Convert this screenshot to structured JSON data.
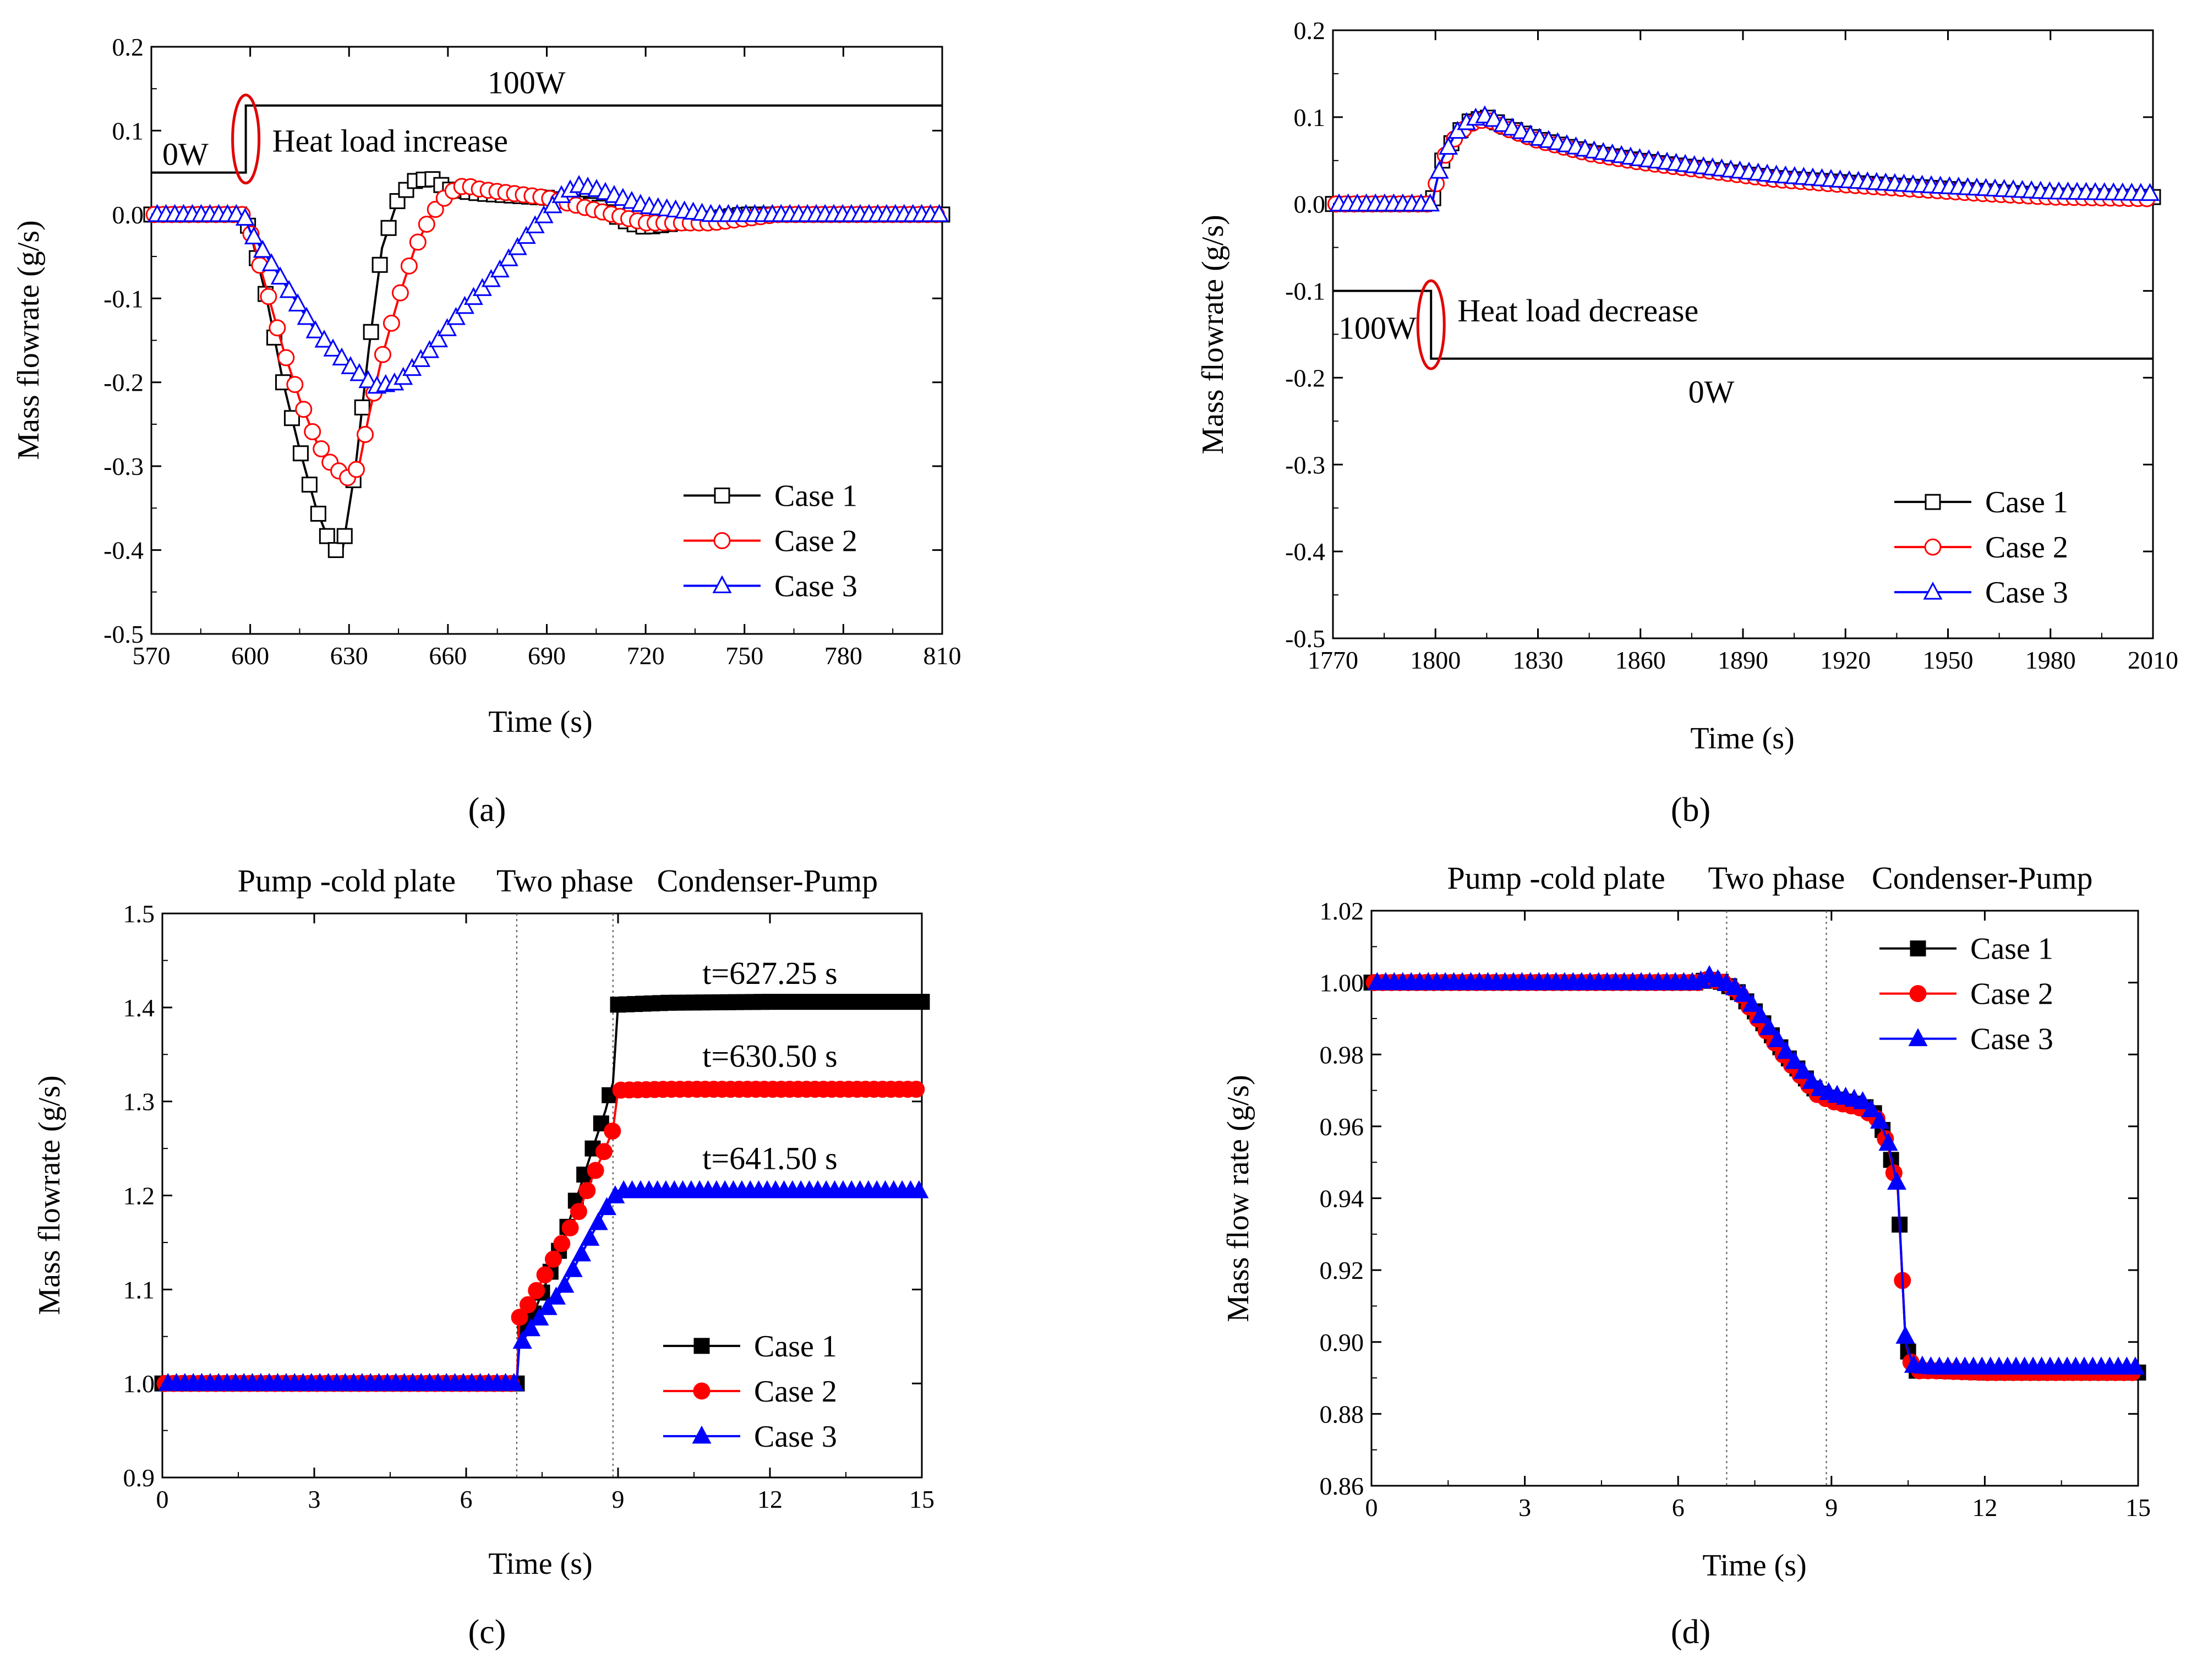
{
  "figure": {
    "panels": [
      "(a)",
      "(b)",
      "(c)",
      "(d)"
    ]
  },
  "chart_data": [
    {
      "id": "a",
      "type": "line",
      "panel_label": "(a)",
      "xlabel": "Time (s)",
      "ylabel": "Mass flowrate (g/s)",
      "xlim": [
        570,
        810
      ],
      "ylim": [
        -0.5,
        0.2
      ],
      "xticks": [
        570,
        600,
        630,
        660,
        690,
        720,
        750,
        780,
        810
      ],
      "yticks": [
        -0.5,
        -0.4,
        -0.3,
        -0.2,
        -0.1,
        0.0,
        0.1,
        0.2
      ],
      "xtick_labels": [
        "570",
        "600",
        "630",
        "660",
        "690",
        "720",
        "750",
        "780",
        "810"
      ],
      "ytick_labels": [
        "-0.5",
        "-0.4",
        "-0.3",
        "-0.2",
        "-0.1",
        "0.0",
        "0.1",
        "0.2"
      ],
      "legend": [
        "Case 1",
        "Case 2",
        "Case 3"
      ],
      "legend_position": "bottom-right",
      "series": [
        {
          "name": "Case 1",
          "color": "#000000",
          "marker": "open-square",
          "x": [
            570,
            598,
            600,
            605,
            610,
            615,
            620,
            625,
            628,
            632,
            636,
            640,
            645,
            650,
            655,
            660,
            670,
            690,
            705,
            715,
            720,
            730,
            750,
            810
          ],
          "y": [
            0.0,
            0.0,
            -0.02,
            -0.1,
            -0.2,
            -0.28,
            -0.35,
            -0.4,
            -0.4,
            -0.3,
            -0.16,
            -0.04,
            0.02,
            0.04,
            0.043,
            0.03,
            0.025,
            0.02,
            0.01,
            -0.01,
            -0.015,
            -0.01,
            0.0,
            0.0
          ]
        },
        {
          "name": "Case 2",
          "color": "#ff0000",
          "marker": "open-circle",
          "x": [
            570,
            598,
            600,
            605,
            610,
            615,
            620,
            625,
            630,
            633,
            636,
            640,
            645,
            650,
            655,
            660,
            665,
            670,
            690,
            710,
            720,
            740,
            760,
            810
          ],
          "y": [
            0.0,
            0.0,
            -0.02,
            -0.09,
            -0.16,
            -0.22,
            -0.27,
            -0.3,
            -0.315,
            -0.3,
            -0.24,
            -0.17,
            -0.1,
            -0.04,
            0.0,
            0.025,
            0.035,
            0.03,
            0.02,
            0.0,
            -0.01,
            -0.01,
            0.0,
            0.0
          ]
        },
        {
          "name": "Case 3",
          "color": "#0000ff",
          "marker": "open-triangle",
          "x": [
            570,
            598,
            600,
            610,
            620,
            630,
            638,
            645,
            655,
            665,
            675,
            685,
            695,
            700,
            705,
            720,
            740,
            760,
            810
          ],
          "y": [
            0.0,
            0.0,
            -0.02,
            -0.08,
            -0.14,
            -0.18,
            -0.205,
            -0.2,
            -0.16,
            -0.11,
            -0.07,
            -0.02,
            0.025,
            0.035,
            0.03,
            0.01,
            0.0,
            0.0,
            0.0
          ]
        }
      ],
      "annotations": {
        "low_label": "0W",
        "high_label": "100W",
        "event_label": "Heat load increase",
        "step_low_y": 0.05,
        "step_high_y": 0.13,
        "step_time": 600
      }
    },
    {
      "id": "b",
      "type": "line",
      "panel_label": "(b)",
      "xlabel": "Time (s)",
      "ylabel": "Mass flowrate (g/s)",
      "xlim": [
        1770,
        2010
      ],
      "ylim": [
        -0.5,
        0.2
      ],
      "xticks": [
        1770,
        1800,
        1830,
        1860,
        1890,
        1920,
        1950,
        1980,
        2010
      ],
      "yticks": [
        -0.5,
        -0.4,
        -0.3,
        -0.2,
        -0.1,
        0.0,
        0.1,
        0.2
      ],
      "xtick_labels": [
        "1770",
        "1800",
        "1830",
        "1860",
        "1890",
        "1920",
        "1950",
        "1980",
        "2010"
      ],
      "ytick_labels": [
        "-0.5",
        "-0.4",
        "-0.3",
        "-0.2",
        "-0.1",
        "0.0",
        "0.1",
        "0.2"
      ],
      "legend": [
        "Case 1",
        "Case 2",
        "Case 3"
      ],
      "legend_position": "bottom-right",
      "series": [
        {
          "name": "Case 1",
          "color": "#000000",
          "marker": "open-square",
          "x": [
            1770,
            1799,
            1800,
            1802,
            1806,
            1810,
            1815,
            1820,
            1830,
            1845,
            1860,
            1880,
            1900,
            1920,
            1940,
            1960,
            1980,
            2010
          ],
          "y": [
            0.0,
            0.0,
            0.02,
            0.05,
            0.08,
            0.095,
            0.1,
            0.09,
            0.075,
            0.06,
            0.05,
            0.04,
            0.03,
            0.025,
            0.02,
            0.015,
            0.01,
            0.008
          ]
        },
        {
          "name": "Case 2",
          "color": "#ff0000",
          "marker": "open-circle",
          "x": [
            1770,
            1799,
            1800,
            1802,
            1806,
            1810,
            1815,
            1820,
            1830,
            1845,
            1860,
            1880,
            1900,
            1920,
            1940,
            1960,
            1980,
            2010
          ],
          "y": [
            0.0,
            0.0,
            0.02,
            0.05,
            0.078,
            0.092,
            0.098,
            0.088,
            0.073,
            0.058,
            0.048,
            0.038,
            0.028,
            0.022,
            0.017,
            0.012,
            0.008,
            0.006
          ]
        },
        {
          "name": "Case 3",
          "color": "#0000ff",
          "marker": "open-triangle",
          "x": [
            1770,
            1799,
            1800,
            1802,
            1806,
            1810,
            1815,
            1820,
            1830,
            1845,
            1860,
            1880,
            1900,
            1920,
            1940,
            1960,
            1980,
            2010
          ],
          "y": [
            0.0,
            0.0,
            0.02,
            0.052,
            0.082,
            0.097,
            0.102,
            0.091,
            0.076,
            0.062,
            0.052,
            0.042,
            0.033,
            0.027,
            0.022,
            0.018,
            0.014,
            0.012
          ]
        }
      ],
      "annotations": {
        "low_label": "0W",
        "high_label": "100W",
        "event_label": "Heat load decrease",
        "step_high_y": -0.1,
        "step_low_y": -0.178,
        "step_time": 1800
      }
    },
    {
      "id": "c",
      "type": "line",
      "panel_label": "(c)",
      "xlabel": "Time (s)",
      "ylabel": "Mass flowrate (g/s)",
      "xlim": [
        0,
        15
      ],
      "ylim": [
        0.9,
        1.5
      ],
      "xticks": [
        0,
        3,
        6,
        9,
        12,
        15
      ],
      "yticks": [
        0.9,
        1.0,
        1.1,
        1.2,
        1.3,
        1.4,
        1.5
      ],
      "xtick_labels": [
        "0",
        "3",
        "6",
        "9",
        "12",
        "15"
      ],
      "ytick_labels": [
        "0.9",
        "1.0",
        "1.1",
        "1.2",
        "1.3",
        "1.4",
        "1.5"
      ],
      "legend": [
        "Case 1",
        "Case 2",
        "Case 3"
      ],
      "legend_position": "bottom-right",
      "regions": [
        "Pump -cold plate",
        "Two phase",
        "Condenser-Pump"
      ],
      "region_boundaries": [
        7.0,
        8.9
      ],
      "time_labels": [
        {
          "text": "t=627.25 s",
          "y": 1.425
        },
        {
          "text": "t=630.50 s",
          "y": 1.337
        },
        {
          "text": "t=641.50 s",
          "y": 1.228
        }
      ],
      "series": [
        {
          "name": "Case 1",
          "color": "#000000",
          "marker": "filled-square",
          "x": [
            0,
            7.0,
            7.05,
            7.3,
            7.6,
            7.9,
            8.2,
            8.5,
            8.75,
            8.9,
            9.0,
            10,
            12,
            15
          ],
          "y": [
            1.0,
            1.0,
            1.05,
            1.07,
            1.11,
            1.15,
            1.2,
            1.25,
            1.29,
            1.32,
            1.403,
            1.405,
            1.406,
            1.406
          ]
        },
        {
          "name": "Case 2",
          "color": "#ff0000",
          "marker": "filled-circle",
          "x": [
            0,
            7.0,
            7.05,
            7.3,
            7.6,
            7.9,
            8.2,
            8.5,
            8.75,
            8.9,
            9.0,
            10,
            12,
            15
          ],
          "y": [
            1.0,
            1.0,
            1.07,
            1.09,
            1.12,
            1.15,
            1.18,
            1.22,
            1.25,
            1.27,
            1.312,
            1.313,
            1.313,
            1.313
          ]
        },
        {
          "name": "Case 3",
          "color": "#0000ff",
          "marker": "filled-triangle",
          "x": [
            0,
            7.0,
            7.05,
            7.3,
            7.6,
            7.9,
            8.2,
            8.5,
            8.75,
            8.95,
            9.0,
            10,
            12,
            15
          ],
          "y": [
            1.0,
            1.0,
            1.04,
            1.06,
            1.08,
            1.1,
            1.13,
            1.16,
            1.185,
            1.2,
            1.205,
            1.205,
            1.205,
            1.205
          ]
        }
      ]
    },
    {
      "id": "d",
      "type": "line",
      "panel_label": "(d)",
      "xlabel": "Time (s)",
      "ylabel": "Mass flow rate (g/s)",
      "xlim": [
        0,
        15
      ],
      "ylim": [
        0.86,
        1.02
      ],
      "xticks": [
        0,
        3,
        6,
        9,
        12,
        15
      ],
      "yticks": [
        0.86,
        0.88,
        0.9,
        0.92,
        0.94,
        0.96,
        0.98,
        1.0,
        1.02
      ],
      "xtick_labels": [
        "0",
        "3",
        "6",
        "9",
        "12",
        "15"
      ],
      "ytick_labels": [
        "0.86",
        "0.88",
        "0.90",
        "0.92",
        "0.94",
        "0.96",
        "0.98",
        "1.00",
        "1.02"
      ],
      "legend": [
        "Case 1",
        "Case 2",
        "Case 3"
      ],
      "legend_position": "top-right",
      "regions": [
        "Pump -cold plate",
        "Two phase",
        "Condenser-Pump"
      ],
      "region_boundaries": [
        6.95,
        8.9
      ],
      "series": [
        {
          "name": "Case 1",
          "color": "#000000",
          "marker": "filled-square",
          "x": [
            0,
            6.4,
            6.6,
            6.9,
            7.2,
            7.5,
            7.8,
            8.1,
            8.4,
            8.7,
            9.0,
            9.3,
            9.6,
            9.9,
            10.1,
            10.3,
            10.45,
            10.6,
            11,
            12,
            13,
            15
          ],
          "y": [
            1.0,
            1.0,
            1.001,
            1.0,
            0.997,
            0.992,
            0.986,
            0.98,
            0.975,
            0.97,
            0.968,
            0.967,
            0.966,
            0.963,
            0.955,
            0.942,
            0.9,
            0.892,
            0.892,
            0.8915,
            0.8915,
            0.8915
          ]
        },
        {
          "name": "Case 2",
          "color": "#ff0000",
          "marker": "filled-circle",
          "x": [
            0,
            6.4,
            6.6,
            6.9,
            7.2,
            7.5,
            7.8,
            8.1,
            8.4,
            8.7,
            9.0,
            9.3,
            9.6,
            9.9,
            10.1,
            10.3,
            10.45,
            10.6,
            11,
            12,
            13,
            15
          ],
          "y": [
            1.0,
            1.0,
            1.001,
            1.0,
            0.997,
            0.991,
            0.985,
            0.979,
            0.974,
            0.969,
            0.967,
            0.966,
            0.965,
            0.962,
            0.955,
            0.942,
            0.9,
            0.892,
            0.892,
            0.8915,
            0.8915,
            0.8915
          ]
        },
        {
          "name": "Case 3",
          "color": "#0000ff",
          "marker": "filled-triangle",
          "x": [
            0,
            6.4,
            6.6,
            6.9,
            7.2,
            7.5,
            7.8,
            8.1,
            8.4,
            8.7,
            9.0,
            9.3,
            9.6,
            9.9,
            10.1,
            10.3,
            10.45,
            10.6,
            11,
            12,
            13,
            15
          ],
          "y": [
            1.0,
            1.0,
            1.002,
            1.0,
            0.998,
            0.993,
            0.987,
            0.981,
            0.976,
            0.971,
            0.969,
            0.968,
            0.967,
            0.963,
            0.956,
            0.943,
            0.9,
            0.8935,
            0.893,
            0.893,
            0.893,
            0.893
          ]
        }
      ]
    }
  ]
}
